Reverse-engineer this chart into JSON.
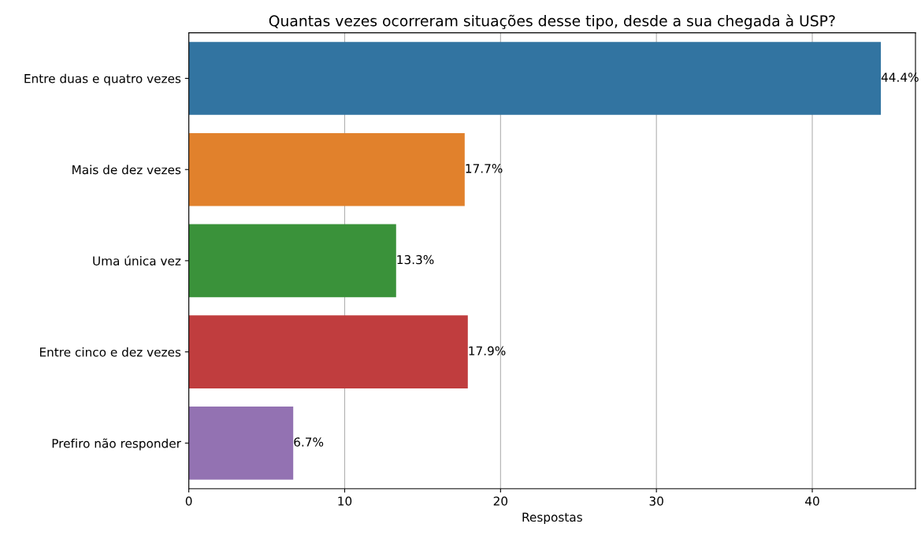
{
  "chart_data": {
    "type": "bar",
    "orientation": "horizontal",
    "title": "Quantas vezes ocorreram situações desse tipo, desde a sua chegada à USP?",
    "xlabel": "Respostas",
    "categories": [
      "Entre duas e quatro vezes",
      "Mais de dez vezes",
      "Uma única vez",
      "Entre cinco e dez vezes",
      "Prefiro não responder"
    ],
    "values": [
      44.4,
      17.7,
      13.3,
      17.9,
      6.7
    ],
    "value_labels": [
      "44.4%",
      "17.7%",
      "13.3%",
      "17.9%",
      "6.7%"
    ],
    "colors": [
      "#3274a1",
      "#e1812c",
      "#3a923a",
      "#c03d3e",
      "#9372b2"
    ],
    "xlim": [
      0,
      46.62
    ],
    "xticks": [
      0,
      10,
      20,
      30,
      40
    ],
    "grid": "x"
  }
}
